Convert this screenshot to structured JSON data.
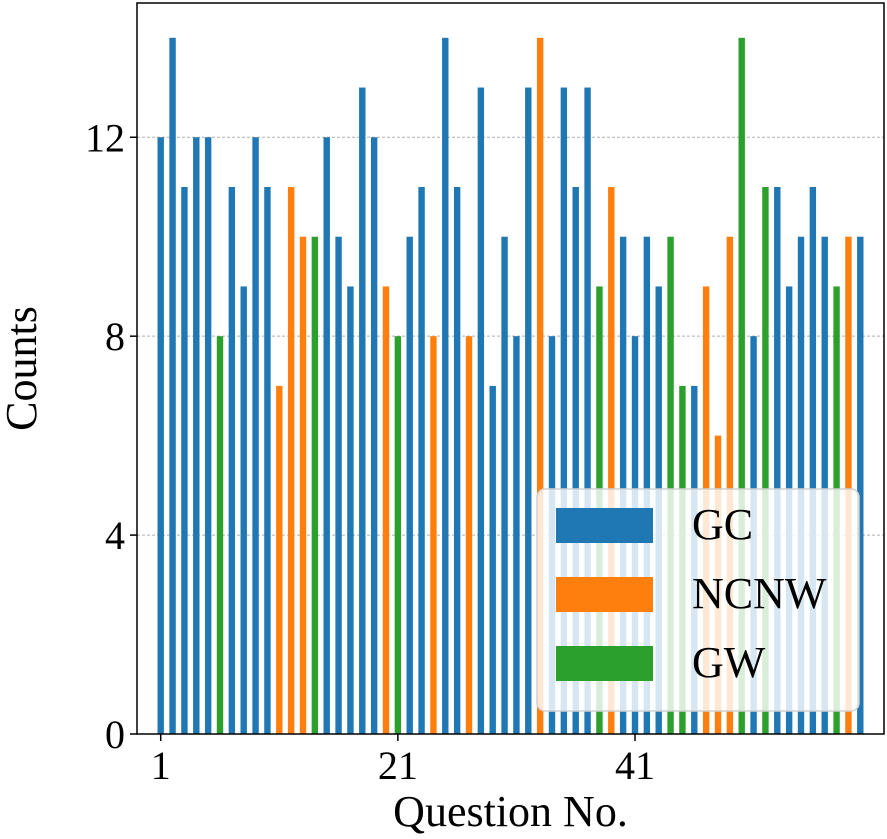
{
  "chart_data": {
    "type": "bar",
    "xlabel": "Question No.",
    "ylabel": "Counts",
    "x": [
      1,
      2,
      3,
      4,
      5,
      6,
      7,
      8,
      9,
      10,
      11,
      12,
      13,
      14,
      15,
      16,
      17,
      18,
      19,
      20,
      21,
      22,
      23,
      24,
      25,
      26,
      27,
      28,
      29,
      30,
      31,
      32,
      33,
      34,
      35,
      36,
      37,
      38,
      39,
      40,
      41,
      42,
      43,
      44,
      45,
      46,
      47,
      48,
      49,
      50,
      51,
      52,
      53,
      54,
      55,
      56,
      57,
      58,
      59,
      60
    ],
    "xticks": [
      1,
      21,
      41
    ],
    "yticks": [
      0,
      4,
      8,
      12
    ],
    "ylim": [
      0,
      14.7
    ],
    "xlim": [
      -1,
      62
    ],
    "grid": "y-dashed",
    "legend_position": "lower-right",
    "categories_per_bar": [
      "GC",
      "GC",
      "GC",
      "GC",
      "GC",
      "GW",
      "GC",
      "GC",
      "GC",
      "GC",
      "NCNW",
      "NCNW",
      "NCNW",
      "GW",
      "GC",
      "GC",
      "GC",
      "GC",
      "GC",
      "NCNW",
      "GW",
      "GC",
      "GC",
      "NCNW",
      "GC",
      "GC",
      "NCNW",
      "GC",
      "GC",
      "GC",
      "GC",
      "GC",
      "NCNW",
      "GC",
      "GC",
      "GC",
      "GC",
      "GW",
      "NCNW",
      "GC",
      "GC",
      "GC",
      "GC",
      "GW",
      "GW",
      "GC",
      "NCNW",
      "NCNW",
      "NCNW",
      "GW",
      "GC",
      "GW",
      "GC",
      "GC",
      "GC",
      "GC",
      "GC",
      "GW",
      "NCNW",
      "GC"
    ],
    "values": [
      12,
      14,
      11,
      12,
      12,
      8,
      11,
      9,
      12,
      11,
      7,
      11,
      10,
      10,
      12,
      10,
      9,
      13,
      12,
      9,
      8,
      10,
      11,
      8,
      14,
      11,
      8,
      13,
      7,
      10,
      8,
      13,
      14,
      8,
      13,
      11,
      13,
      9,
      11,
      10,
      8,
      10,
      9,
      10,
      7,
      7,
      9,
      6,
      10,
      14,
      8,
      11,
      11,
      9,
      10,
      11,
      10,
      9,
      10,
      10
    ],
    "series": [
      {
        "name": "GC",
        "color": "#1f77b4"
      },
      {
        "name": "NCNW",
        "color": "#ff7f0e"
      },
      {
        "name": "GW",
        "color": "#2ca02c"
      }
    ]
  }
}
